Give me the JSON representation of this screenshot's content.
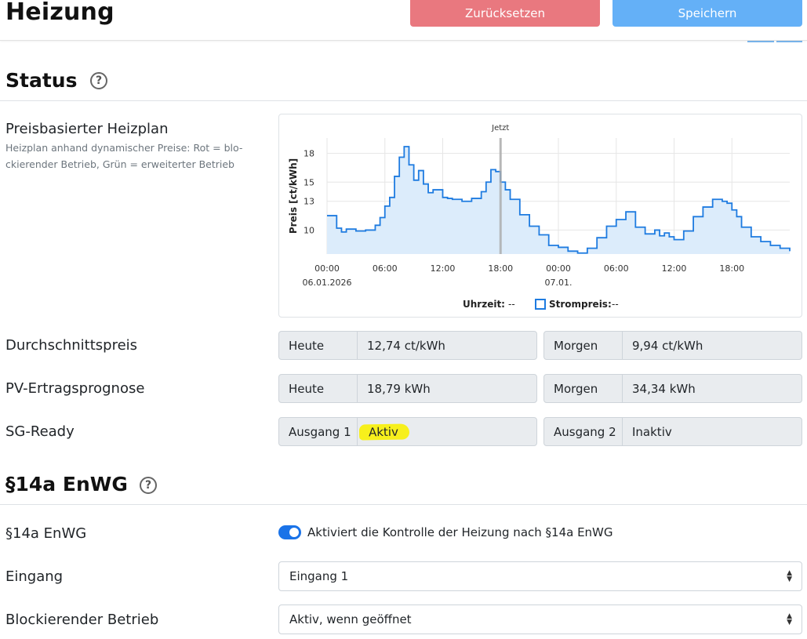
{
  "header": {
    "title": "Heizung",
    "reset_label": "Zurücksetzen",
    "save_label": "Speichern",
    "reset_color": "#e9787f",
    "save_color": "#64b0f7"
  },
  "status": {
    "title": "Status",
    "help_icon": "question-circle-icon",
    "price_plan": {
      "label": "Preisbasierter Heizplan",
      "description": "Heizplan anhand dynamischer Preise: Rot = blo- ckierender Betrieb, Grün = erweiterter Betrieb"
    },
    "average_price": {
      "label": "Durchschnittspreis",
      "today_label": "Heute",
      "today_value": "12,74 ct/kWh",
      "tomorrow_label": "Morgen",
      "tomorrow_value": "9,94 ct/kWh"
    },
    "pv_forecast": {
      "label": "PV-Ertragsprognose",
      "today_label": "Heute",
      "today_value": "18,79 kWh",
      "tomorrow_label": "Morgen",
      "tomorrow_value": "34,34 kWh"
    },
    "sg_ready": {
      "label": "SG-Ready",
      "out1_label": "Ausgang 1",
      "out1_value": "Aktiv",
      "out2_label": "Ausgang 2",
      "out2_value": "Inaktiv"
    }
  },
  "enwg": {
    "title": "§14a EnWG",
    "help_icon": "question-circle-icon",
    "toggle": {
      "label": "§14a EnWG",
      "enabled": true,
      "text": "Aktiviert die Kontrolle der Heizung nach §14a EnWG"
    },
    "input": {
      "label": "Eingang",
      "value": "Eingang 1"
    },
    "blocking": {
      "label": "Blockierender Betrieb",
      "value": "Aktiv, wenn geöffnet"
    }
  },
  "chart_data": {
    "type": "line",
    "ylabel": "Preis [ct/kWh]",
    "y_ticks": [
      10,
      13,
      15,
      18
    ],
    "ylim": [
      7.5,
      19.6
    ],
    "x_ticks": [
      {
        "h": 0,
        "label": "00:00",
        "sub": "06.01.2026"
      },
      {
        "h": 6,
        "label": "06:00",
        "sub": ""
      },
      {
        "h": 12,
        "label": "12:00",
        "sub": ""
      },
      {
        "h": 18,
        "label": "18:00",
        "sub": ""
      },
      {
        "h": 24,
        "label": "00:00",
        "sub": "07.01."
      },
      {
        "h": 30,
        "label": "06:00",
        "sub": ""
      },
      {
        "h": 36,
        "label": "12:00",
        "sub": ""
      },
      {
        "h": 42,
        "label": "18:00",
        "sub": ""
      }
    ],
    "xlim": [
      0,
      48
    ],
    "now_marker": {
      "h": 18,
      "label": "Jetzt"
    },
    "series": [
      {
        "color": "#1e7be0",
        "fill": "#dcecfb",
        "hours": [
          0,
          1,
          1.5,
          2,
          3,
          4,
          5,
          5.5,
          6,
          6.5,
          7,
          7.5,
          8,
          8.5,
          9,
          9.5,
          10,
          10.5,
          11,
          12,
          12.5,
          13,
          14,
          15,
          16,
          16.5,
          17,
          17.5,
          18,
          18.5,
          19,
          20,
          21,
          22,
          23,
          24,
          25,
          26,
          27,
          28,
          29,
          30,
          31,
          32,
          33,
          34,
          34.5,
          35,
          35.5,
          36,
          37,
          38,
          39,
          40,
          41,
          41.5,
          42,
          42.5,
          43,
          44,
          45,
          46,
          47,
          48
        ],
        "values": [
          11.5,
          10.2,
          9.8,
          10.1,
          9.9,
          10.0,
          10.5,
          11.3,
          12.5,
          13.4,
          15.6,
          17.6,
          18.7,
          16.8,
          15.2,
          16.2,
          14.8,
          13.9,
          14.2,
          13.4,
          13.3,
          13.2,
          13.0,
          13.3,
          14.0,
          15.0,
          16.3,
          16.1,
          15.0,
          14.2,
          13.2,
          11.6,
          10.4,
          9.5,
          8.4,
          8.2,
          7.8,
          7.6,
          8.1,
          9.2,
          10.4,
          11.1,
          11.9,
          10.3,
          9.6,
          10.0,
          9.4,
          9.7,
          9.3,
          9.0,
          9.9,
          11.4,
          12.4,
          13.2,
          13.0,
          12.8,
          12.1,
          11.4,
          10.3,
          9.3,
          8.8,
          8.4,
          8.1,
          7.8
        ]
      }
    ],
    "legend": [
      {
        "label": "Uhrzeit:",
        "value": "--"
      },
      {
        "label": "Strompreis:",
        "value": "--"
      }
    ]
  }
}
